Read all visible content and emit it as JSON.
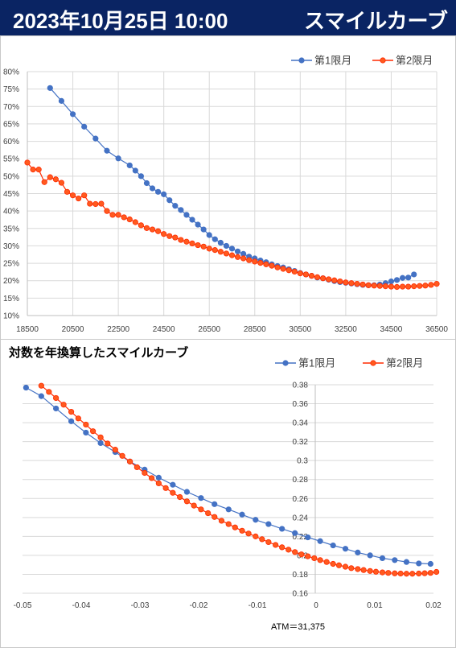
{
  "header": {
    "date_time": "2023年10月25日 10:00",
    "name": "スマイルカーブ"
  },
  "colors": {
    "header_bg": "#0a2463",
    "series1": "#4472c4",
    "series2": "#ff2a00",
    "series2_fill": "#ff5a1f",
    "grid": "#d9d9d9"
  },
  "chart_data": [
    {
      "type": "line",
      "title": "",
      "legend": "top-right",
      "grid": true,
      "xlim": [
        18500,
        36500
      ],
      "ylim": [
        10,
        80
      ],
      "x_ticks": [
        "18500",
        "20500",
        "22500",
        "24500",
        "26500",
        "28500",
        "30500",
        "32500",
        "34500",
        "36500"
      ],
      "y_ticks": [
        "10%",
        "15%",
        "20%",
        "25%",
        "30%",
        "35%",
        "40%",
        "45%",
        "50%",
        "55%",
        "60%",
        "65%",
        "70%",
        "75%",
        "80%"
      ],
      "series": [
        {
          "name": "第1限月",
          "x": [
            19500,
            20000,
            20500,
            21000,
            21500,
            22000,
            22500,
            23000,
            23250,
            23500,
            23750,
            24000,
            24250,
            24500,
            24750,
            25000,
            25250,
            25500,
            25750,
            26000,
            26250,
            26500,
            26750,
            27000,
            27250,
            27500,
            27750,
            28000,
            28250,
            28500,
            28750,
            29000,
            29250,
            29500,
            29750,
            30000,
            30250,
            30500,
            30750,
            31000,
            31250,
            31500,
            31750,
            32000,
            32250,
            32500,
            32750,
            33000,
            33250,
            33500,
            33750,
            34000,
            34250,
            34500,
            34750,
            35000,
            35250,
            35500
          ],
          "values": [
            75.3,
            71.6,
            67.8,
            64.2,
            60.8,
            57.3,
            55.1,
            53.1,
            51.6,
            50.0,
            48.0,
            46.5,
            45.5,
            44.8,
            43.1,
            41.5,
            40.3,
            38.9,
            37.5,
            36.1,
            34.7,
            33.1,
            31.9,
            30.9,
            30.0,
            29.2,
            28.4,
            27.7,
            26.9,
            26.4,
            25.8,
            25.3,
            24.7,
            24.2,
            23.8,
            23.3,
            22.8,
            22.2,
            21.8,
            21.4,
            20.9,
            20.7,
            20.3,
            19.9,
            19.6,
            19.4,
            19.2,
            19.0,
            18.8,
            18.7,
            18.7,
            18.9,
            19.3,
            19.8,
            20.2,
            20.8,
            20.9,
            21.8
          ]
        },
        {
          "name": "第2限月",
          "x": [
            18500,
            18750,
            19000,
            19250,
            19500,
            19750,
            20000,
            20250,
            20500,
            20750,
            21000,
            21250,
            21500,
            21750,
            22000,
            22250,
            22500,
            22750,
            23000,
            23250,
            23500,
            23750,
            24000,
            24250,
            24500,
            24750,
            25000,
            25250,
            25500,
            25750,
            26000,
            26250,
            26500,
            26750,
            27000,
            27250,
            27500,
            27750,
            28000,
            28250,
            28500,
            28750,
            29000,
            29250,
            29500,
            29750,
            30000,
            30250,
            30500,
            30750,
            31000,
            31250,
            31500,
            31750,
            32000,
            32250,
            32500,
            32750,
            33000,
            33250,
            33500,
            33750,
            34000,
            34250,
            34500,
            34750,
            35000,
            35250,
            35500,
            35750,
            36000,
            36250,
            36500
          ],
          "values": [
            53.9,
            51.9,
            51.9,
            48.3,
            49.7,
            49.1,
            48.1,
            45.5,
            44.5,
            43.6,
            44.5,
            42.1,
            42.0,
            42.1,
            40.0,
            38.9,
            38.9,
            38.2,
            37.6,
            36.8,
            35.9,
            35.1,
            34.7,
            34.2,
            33.4,
            32.8,
            32.4,
            31.7,
            31.2,
            30.7,
            30.2,
            29.8,
            29.2,
            28.8,
            28.3,
            27.8,
            27.3,
            26.8,
            26.4,
            25.9,
            25.5,
            25.1,
            24.7,
            24.3,
            23.8,
            23.4,
            23.0,
            22.6,
            22.1,
            21.8,
            21.4,
            21.0,
            20.7,
            20.4,
            20.1,
            19.8,
            19.5,
            19.3,
            19.1,
            18.9,
            18.7,
            18.6,
            18.5,
            18.4,
            18.3,
            18.2,
            18.3,
            18.3,
            18.4,
            18.5,
            18.6,
            18.8,
            19.1
          ]
        }
      ]
    },
    {
      "type": "line",
      "title": "対数を年換算したスマイルカーブ",
      "legend": "top-right",
      "grid": true,
      "xlim": [
        -0.05,
        0.02
      ],
      "ylim": [
        0.16,
        0.38
      ],
      "x_ticks": [
        "-0.05",
        "-0.04",
        "-0.03",
        "-0.02",
        "-0.01",
        "0",
        "0.01",
        "0.02"
      ],
      "y_ticks": [
        "0.16",
        "0.18",
        "0.2",
        "0.22",
        "0.24",
        "0.26",
        "0.28",
        "0.3",
        "0.32",
        "0.34",
        "0.36",
        "0.38"
      ],
      "annotation": "ATM＝31,375",
      "series": [
        {
          "name": "第1限月",
          "x": [
            -0.0494,
            -0.0468,
            -0.0443,
            -0.0417,
            -0.0392,
            -0.0367,
            -0.0342,
            -0.0317,
            -0.0292,
            -0.0268,
            -0.0244,
            -0.022,
            -0.0196,
            -0.0173,
            -0.0149,
            -0.0126,
            -0.0103,
            -0.0081,
            -0.0058,
            -0.0036,
            -0.0014,
            0.0007,
            0.0029,
            0.005,
            0.0071,
            0.0092,
            0.0113,
            0.0134,
            0.0154,
            0.0175,
            0.0195
          ],
          "values": [
            0.377,
            0.368,
            0.355,
            0.3415,
            0.3295,
            0.3185,
            0.309,
            0.299,
            0.2905,
            0.282,
            0.2745,
            0.267,
            0.2605,
            0.254,
            0.2485,
            0.243,
            0.2375,
            0.233,
            0.228,
            0.2235,
            0.219,
            0.215,
            0.2105,
            0.207,
            0.203,
            0.2,
            0.197,
            0.195,
            0.193,
            0.1915,
            0.191
          ]
        },
        {
          "name": "第2限月",
          "x": [
            -0.0468,
            -0.0455,
            -0.0443,
            -0.043,
            -0.0417,
            -0.0405,
            -0.0392,
            -0.038,
            -0.0367,
            -0.0355,
            -0.0342,
            -0.033,
            -0.0317,
            -0.0305,
            -0.0292,
            -0.028,
            -0.0268,
            -0.0256,
            -0.0244,
            -0.0232,
            -0.022,
            -0.0208,
            -0.0196,
            -0.0184,
            -0.0173,
            -0.0161,
            -0.0149,
            -0.0138,
            -0.0126,
            -0.0115,
            -0.0103,
            -0.0092,
            -0.0081,
            -0.0069,
            -0.0058,
            -0.0047,
            -0.0036,
            -0.0025,
            -0.0014,
            -0.0003,
            0.0007,
            0.0018,
            0.0029,
            0.0039,
            0.005,
            0.006,
            0.0071,
            0.0081,
            0.0092,
            0.0102,
            0.0113,
            0.0123,
            0.0134,
            0.0144,
            0.0154,
            0.0164,
            0.0175,
            0.0185,
            0.0195,
            0.0205
          ],
          "values": [
            0.379,
            0.3725,
            0.366,
            0.359,
            0.3515,
            0.3445,
            0.338,
            0.331,
            0.3245,
            0.318,
            0.3115,
            0.305,
            0.299,
            0.293,
            0.287,
            0.2815,
            0.276,
            0.271,
            0.266,
            0.2615,
            0.257,
            0.2525,
            0.2485,
            0.2445,
            0.2405,
            0.2365,
            0.233,
            0.2295,
            0.226,
            0.223,
            0.22,
            0.217,
            0.214,
            0.211,
            0.2085,
            0.206,
            0.2035,
            0.201,
            0.199,
            0.197,
            0.195,
            0.193,
            0.191,
            0.1895,
            0.188,
            0.1865,
            0.1855,
            0.1845,
            0.1835,
            0.1827,
            0.182,
            0.1815,
            0.181,
            0.1808,
            0.1806,
            0.1806,
            0.1808,
            0.1811,
            0.1815,
            0.1825
          ]
        }
      ]
    }
  ]
}
